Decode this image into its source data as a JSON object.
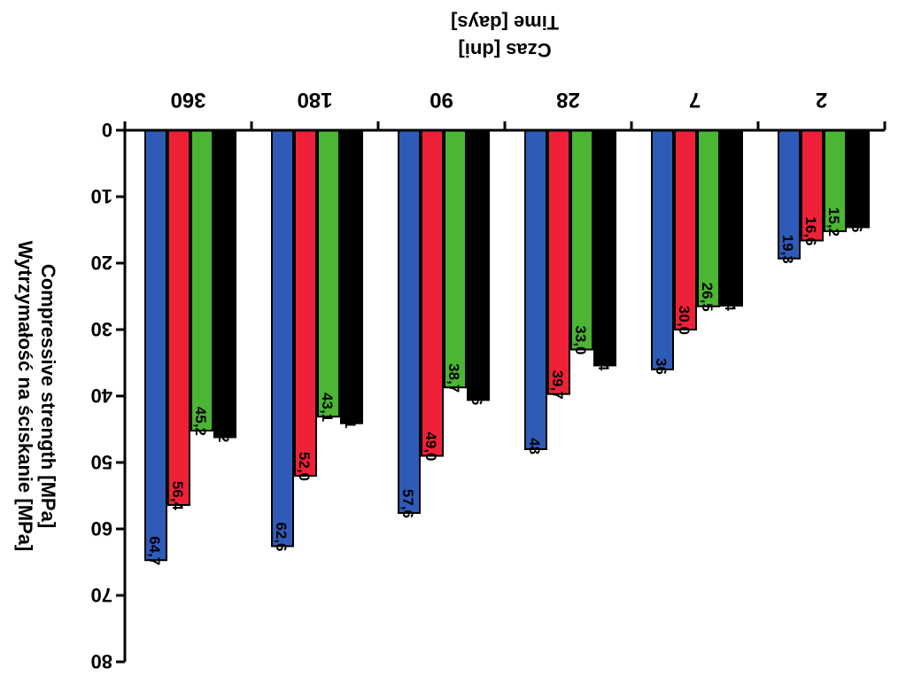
{
  "chart_data": {
    "type": "bar",
    "orientation": "upside-down (image rotated 180 degrees)",
    "categories": [
      "2",
      "7",
      "28",
      "90",
      "180",
      "360"
    ],
    "series": [
      {
        "values": [
          14.6,
          26.4,
          35.4,
          40.6,
          44.1,
          46.2
        ],
        "color": "#000000"
      },
      {
        "values": [
          15.2,
          26.5,
          33.0,
          38.7,
          43.1,
          45.2
        ],
        "color": "#4cb533"
      },
      {
        "values": [
          16.6,
          30.0,
          39.7,
          49.0,
          52.0,
          56.4
        ],
        "color": "#ef2138"
      },
      {
        "values": [
          19.3,
          36,
          48,
          57.6,
          62.6,
          64.7
        ],
        "color": "#2f5bb8"
      }
    ],
    "data_labels": [
      [
        "14,6",
        "26,4",
        "35,4",
        "40,6",
        "44,1",
        "46,2"
      ],
      [
        "15,2",
        "26,5",
        "33,0",
        "38,7",
        "43,1",
        "45,2"
      ],
      [
        "16,6",
        "30,0",
        "39,7",
        "49,0",
        "52,0",
        "56,4"
      ],
      [
        "19,3",
        "36",
        "48",
        "57,6",
        "62,6",
        "64,7"
      ]
    ],
    "ylim": [
      0,
      80
    ],
    "yticks": [
      "0",
      "10",
      "20",
      "30",
      "40",
      "50",
      "60",
      "70",
      "80"
    ],
    "ylabel_lines": [
      "Wytrzymałość na ściskanie [MPa]",
      "Compressive strength [MPa]"
    ],
    "xlabel_lines": [
      "Czas [dni]",
      "Time [days]"
    ],
    "grid": false,
    "legend": "none"
  }
}
